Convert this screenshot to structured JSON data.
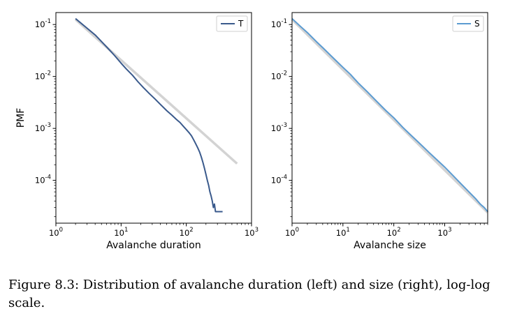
{
  "figure_caption": "Figure 8.3: Distribution of avalanche duration (left) and size (right), log-log scale.",
  "colors": {
    "duration_series": "#3a5a8c",
    "size_series": "#5b9bd1",
    "fit_line": "#d3d3d3"
  },
  "chart_data": [
    {
      "type": "line",
      "scale": "log-log",
      "xlabel": "Avalanche duration",
      "ylabel": "PMF",
      "xlim": [
        1,
        1000
      ],
      "ylim": [
        1.5e-05,
        0.17
      ],
      "xticks": [
        {
          "value": 1,
          "label": "10^0"
        },
        {
          "value": 10,
          "label": "10^1"
        },
        {
          "value": 100,
          "label": "10^2"
        },
        {
          "value": 1000,
          "label": "10^3"
        }
      ],
      "yticks": [
        {
          "value": 0.0001,
          "label": "10^-4"
        },
        {
          "value": 0.001,
          "label": "10^-3"
        },
        {
          "value": 0.01,
          "label": "10^-2"
        },
        {
          "value": 0.1,
          "label": "10^-1"
        }
      ],
      "legend": {
        "position": "top-right",
        "entries": [
          {
            "label": "T",
            "series": "T"
          }
        ]
      },
      "series": [
        {
          "name": "T",
          "color": "#3a5a8c",
          "x": [
            2,
            3,
            4,
            5,
            6,
            7,
            8,
            10,
            12,
            15,
            18,
            22,
            27,
            33,
            40,
            50,
            60,
            70,
            80,
            90,
            100,
            110,
            120,
            130,
            140,
            150,
            160,
            170,
            180,
            190,
            200,
            210,
            220,
            230,
            240,
            250,
            260,
            270,
            280,
            300,
            330,
            360
          ],
          "y": [
            0.13,
            0.085,
            0.063,
            0.047,
            0.037,
            0.03,
            0.025,
            0.018,
            0.014,
            0.0105,
            0.008,
            0.0061,
            0.0047,
            0.0037,
            0.0029,
            0.0022,
            0.0018,
            0.0015,
            0.0013,
            0.0011,
            0.00095,
            0.00083,
            0.00072,
            0.0006,
            0.0005,
            0.00042,
            0.00035,
            0.00028,
            0.00022,
            0.00017,
            0.00013,
            0.0001,
            8e-05,
            6e-05,
            5e-05,
            4e-05,
            3e-05,
            3.5e-05,
            2.5e-05,
            2.5e-05,
            2.5e-05,
            2.5e-05
          ]
        },
        {
          "name": "",
          "color": "#d3d3d3",
          "x": [
            2,
            600
          ],
          "y": [
            0.125,
            0.00021
          ]
        }
      ]
    },
    {
      "type": "line",
      "scale": "log-log",
      "xlabel": "Avalanche size",
      "ylabel": "",
      "xlim": [
        1,
        7000
      ],
      "ylim": [
        1.5e-05,
        0.17
      ],
      "xticks": [
        {
          "value": 1,
          "label": "10^0"
        },
        {
          "value": 10,
          "label": "10^1"
        },
        {
          "value": 100,
          "label": "10^2"
        },
        {
          "value": 1000,
          "label": "10^3"
        }
      ],
      "yticks": [
        {
          "value": 0.0001,
          "label": "10^-4"
        },
        {
          "value": 0.001,
          "label": "10^-3"
        },
        {
          "value": 0.01,
          "label": "10^-2"
        },
        {
          "value": 0.1,
          "label": "10^-1"
        }
      ],
      "legend": {
        "position": "top-right",
        "entries": [
          {
            "label": "S",
            "series": "S"
          }
        ]
      },
      "series": [
        {
          "name": "S",
          "color": "#5b9bd1",
          "x": [
            1,
            1.5,
            2,
            3,
            4,
            5,
            7,
            10,
            14,
            20,
            30,
            45,
            70,
            100,
            150,
            200,
            300,
            400,
            500,
            700,
            1000,
            1500,
            2000,
            3000,
            4000,
            5000,
            6000,
            7000
          ],
          "y": [
            0.13,
            0.09,
            0.07,
            0.047,
            0.036,
            0.029,
            0.021,
            0.015,
            0.011,
            0.0075,
            0.0051,
            0.0034,
            0.0022,
            0.0016,
            0.00105,
            0.0008,
            0.00055,
            0.00042,
            0.00034,
            0.00025,
            0.00018,
            0.00012,
            9e-05,
            6e-05,
            4.5e-05,
            3.5e-05,
            3e-05,
            2.5e-05
          ]
        },
        {
          "name": "",
          "color": "#d3d3d3",
          "x": [
            1,
            7000
          ],
          "y": [
            0.125,
            2.4e-05
          ]
        }
      ]
    }
  ]
}
